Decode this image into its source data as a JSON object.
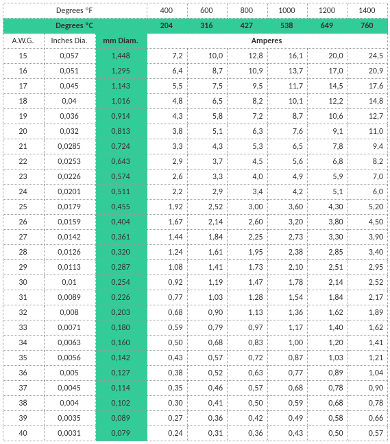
{
  "colors": {
    "highlight_bg": "#33cc99",
    "border": "#999999",
    "text": "#333333"
  },
  "headers": {
    "deg_f_label": "Degrees ºF",
    "deg_c_label": "Degrees ºC",
    "awg_label": "A.W.G.",
    "inches_label": "Inches Dia.",
    "mm_label": "mm Diam.",
    "amperes_label": "Amperes",
    "temps_f": [
      "400",
      "600",
      "800",
      "1000",
      "1200",
      "1400"
    ],
    "temps_c": [
      "204",
      "316",
      "427",
      "538",
      "649",
      "760"
    ]
  },
  "rows": [
    {
      "awg": "15",
      "in": "0,057",
      "mm": "1,448",
      "a": [
        "7,2",
        "10,0",
        "12,8",
        "16,1",
        "20,0",
        "24,5"
      ]
    },
    {
      "awg": "16",
      "in": "0,051",
      "mm": "1,295",
      "a": [
        "6,4",
        "8,7",
        "10,9",
        "13,7",
        "17,0",
        "20,9"
      ]
    },
    {
      "awg": "17",
      "in": "0,045",
      "mm": "1,143",
      "a": [
        "5,5",
        "7,5",
        "9,5",
        "11,7",
        "14,5",
        "17,6"
      ]
    },
    {
      "awg": "18",
      "in": "0,04",
      "mm": "1,016",
      "a": [
        "4,8",
        "6,5",
        "8,2",
        "10,1",
        "12,2",
        "14,8"
      ]
    },
    {
      "awg": "19",
      "in": "0,036",
      "mm": "0,914",
      "a": [
        "4,3",
        "5,8",
        "7,2",
        "8,7",
        "10,6",
        "12,7"
      ]
    },
    {
      "awg": "20",
      "in": "0,032",
      "mm": "0,813",
      "a": [
        "3,8",
        "5,1",
        "6,3",
        "7,6",
        "9,1",
        "11,0"
      ]
    },
    {
      "awg": "21",
      "in": "0,0285",
      "mm": "0,724",
      "a": [
        "3,3",
        "4,3",
        "5,3",
        "6,5",
        "7,8",
        "9,4"
      ]
    },
    {
      "awg": "22",
      "in": "0,0253",
      "mm": "0,643",
      "a": [
        "2,9",
        "3,7",
        "4,5",
        "5,6",
        "6,8",
        "8,2"
      ]
    },
    {
      "awg": "23",
      "in": "0,0226",
      "mm": "0,574",
      "a": [
        "2,6",
        "3,3",
        "4,0",
        "4,9",
        "5,9",
        "7,0"
      ]
    },
    {
      "awg": "24",
      "in": "0,0201",
      "mm": "0,511",
      "a": [
        "2,2",
        "2,9",
        "3,4",
        "4,2",
        "5,1",
        "6,0"
      ]
    },
    {
      "awg": "25",
      "in": "0,0179",
      "mm": "0,455",
      "a": [
        "1,92",
        "2,52",
        "3,00",
        "3,60",
        "4,30",
        "5,20"
      ]
    },
    {
      "awg": "26",
      "in": "0,0159",
      "mm": "0,404",
      "a": [
        "1,67",
        "2,14",
        "2,60",
        "3,20",
        "3,80",
        "4,50"
      ]
    },
    {
      "awg": "27",
      "in": "0,0142",
      "mm": "0,361",
      "a": [
        "1,44",
        "1,84",
        "2,25",
        "2,73",
        "3,30",
        "3,90"
      ]
    },
    {
      "awg": "28",
      "in": "0,0126",
      "mm": "0,320",
      "a": [
        "1,24",
        "1,61",
        "1,95",
        "2,38",
        "2,85",
        "3,40"
      ]
    },
    {
      "awg": "29",
      "in": "0,0113",
      "mm": "0,287",
      "a": [
        "1,08",
        "1,41",
        "1,73",
        "2,10",
        "2,51",
        "2,95"
      ]
    },
    {
      "awg": "30",
      "in": "0,01",
      "mm": "0,254",
      "a": [
        "0,92",
        "1,19",
        "1,47",
        "1,78",
        "2,14",
        "2,52"
      ]
    },
    {
      "awg": "31",
      "in": "0,0089",
      "mm": "0,226",
      "a": [
        "0,77",
        "1,03",
        "1,28",
        "1,54",
        "1,84",
        "2,17"
      ]
    },
    {
      "awg": "32",
      "in": "0,008",
      "mm": "0,203",
      "a": [
        "0,68",
        "0,90",
        "1,13",
        "1,36",
        "1,62",
        "1,89"
      ]
    },
    {
      "awg": "33",
      "in": "0,0071",
      "mm": "0,180",
      "a": [
        "0,59",
        "0,79",
        "0,97",
        "1,17",
        "1,40",
        "1,62"
      ]
    },
    {
      "awg": "34",
      "in": "0,0063",
      "mm": "0,160",
      "a": [
        "0,50",
        "0,68",
        "0,83",
        "1,00",
        "1,20",
        "1,41"
      ]
    },
    {
      "awg": "35",
      "in": "0,0056",
      "mm": "0,142",
      "a": [
        "0,43",
        "0,57",
        "0,72",
        "0,87",
        "1,03",
        "1,21"
      ]
    },
    {
      "awg": "36",
      "in": "0,005",
      "mm": "0,127",
      "a": [
        "0,38",
        "0,52",
        "0,63",
        "0,77",
        "0,89",
        "1,04"
      ]
    },
    {
      "awg": "37",
      "in": "0,0045",
      "mm": "0,114",
      "a": [
        "0,35",
        "0,46",
        "0,57",
        "0,68",
        "0,78",
        "0,90"
      ]
    },
    {
      "awg": "38",
      "in": "0,004",
      "mm": "0,102",
      "a": [
        "0,30",
        "0,41",
        "0,50",
        "0,59",
        "0,68",
        "0,78"
      ]
    },
    {
      "awg": "39",
      "in": "0,0035",
      "mm": "0,089",
      "a": [
        "0,27",
        "0,36",
        "0,42",
        "0,49",
        "0,58",
        "0,66"
      ]
    },
    {
      "awg": "40",
      "in": "0,0031",
      "mm": "0,079",
      "a": [
        "0,24",
        "0,31",
        "0,36",
        "0,43",
        "0,50",
        "0,57"
      ]
    }
  ]
}
